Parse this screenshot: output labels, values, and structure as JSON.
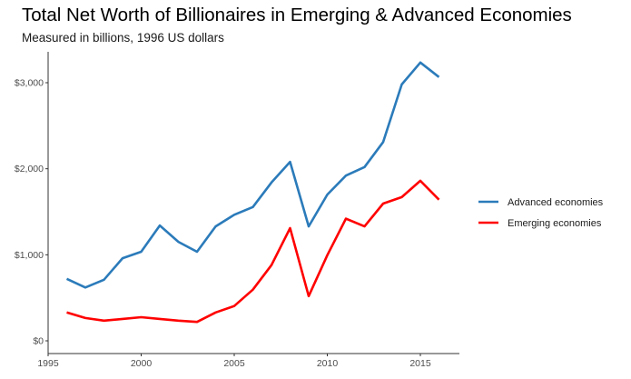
{
  "chart_data": {
    "type": "line",
    "title": "Total Net Worth of Billionaires in Emerging & Advanced Economies",
    "subtitle": "Measured in billions, 1996 US dollars",
    "xlabel": "",
    "ylabel": "",
    "xlim": [
      1995,
      2017
    ],
    "ylim": [
      -150,
      3400
    ],
    "x_ticks": [
      1995,
      2000,
      2005,
      2010,
      2015
    ],
    "x_tick_labels": [
      "1995",
      "2000",
      "2005",
      "2010",
      "2015"
    ],
    "y_ticks": [
      0,
      1000,
      2000,
      3000
    ],
    "y_tick_labels": [
      "$0",
      "$1,000",
      "$2,000",
      "$3,000"
    ],
    "grid": false,
    "legend_position": "right",
    "x": [
      1996,
      1997,
      1998,
      1999,
      2000,
      2001,
      2002,
      2003,
      2004,
      2005,
      2006,
      2007,
      2008,
      2009,
      2010,
      2011,
      2012,
      2013,
      2014,
      2015,
      2016
    ],
    "series": [
      {
        "name": "Advanced economies",
        "color": "#2b7bba",
        "values": [
          720,
          620,
          710,
          960,
          1035,
          1340,
          1150,
          1035,
          1330,
          1465,
          1555,
          1840,
          2080,
          1330,
          1700,
          1920,
          2020,
          2310,
          2980,
          3235,
          3065
        ]
      },
      {
        "name": "Emerging economies",
        "color": "#ff0000",
        "values": [
          330,
          265,
          235,
          255,
          275,
          255,
          235,
          220,
          330,
          405,
          595,
          880,
          1310,
          520,
          995,
          1420,
          1330,
          1595,
          1670,
          1860,
          1640
        ]
      }
    ]
  }
}
